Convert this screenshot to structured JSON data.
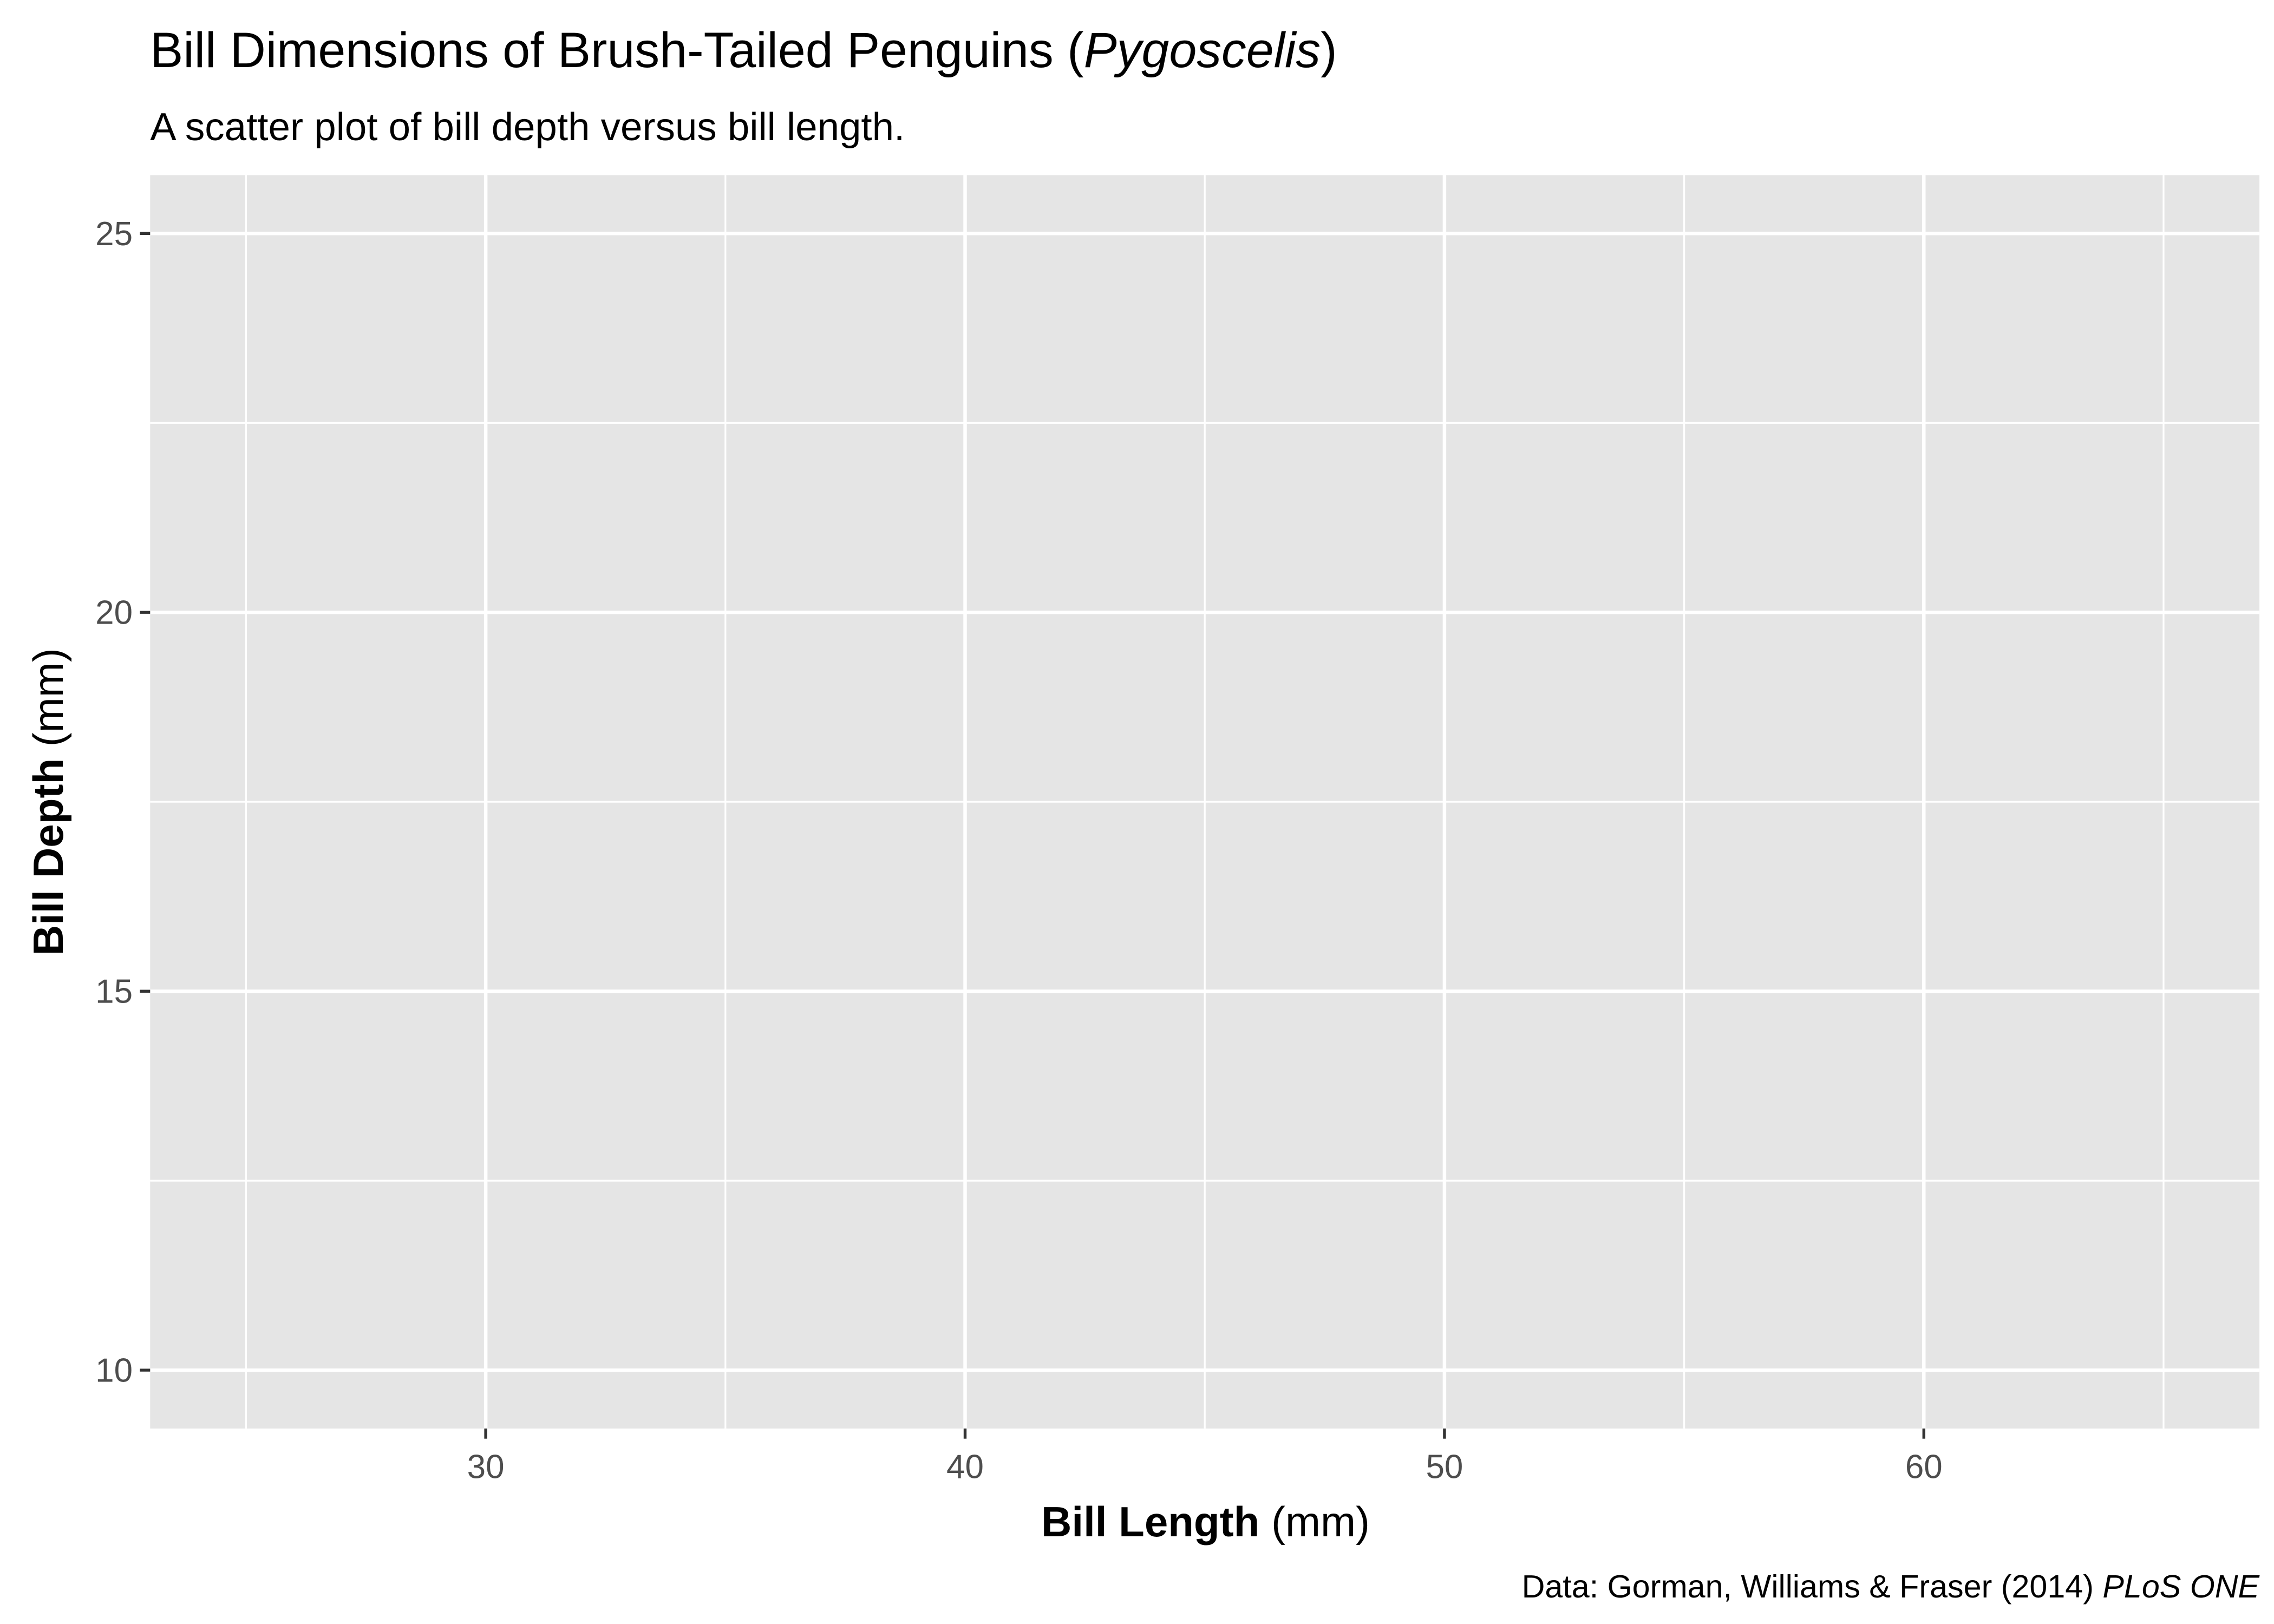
{
  "chart_data": {
    "type": "scatter",
    "title": [
      "Bill Dimensions of Brush-Tailed Penguins (",
      "Pygoscelis",
      ")"
    ],
    "subtitle": "A scatter plot of bill depth versus bill length.",
    "x_label": [
      "Bill Length",
      " (mm)"
    ],
    "y_label": [
      "Bill Depth",
      " (mm)"
    ],
    "caption": [
      "Data: Gorman, Williams & Fraser (2014) ",
      "PLoS ONE"
    ],
    "xlim": [
      23,
      67
    ],
    "xticks": [
      30,
      40,
      50,
      60
    ],
    "xminor": [
      25,
      35,
      45,
      55,
      65
    ],
    "ylim": [
      9.23,
      25.77
    ],
    "yticks": [
      10,
      15,
      20,
      25
    ],
    "yminor": [
      12.5,
      17.5,
      22.5
    ],
    "grid": true
  }
}
